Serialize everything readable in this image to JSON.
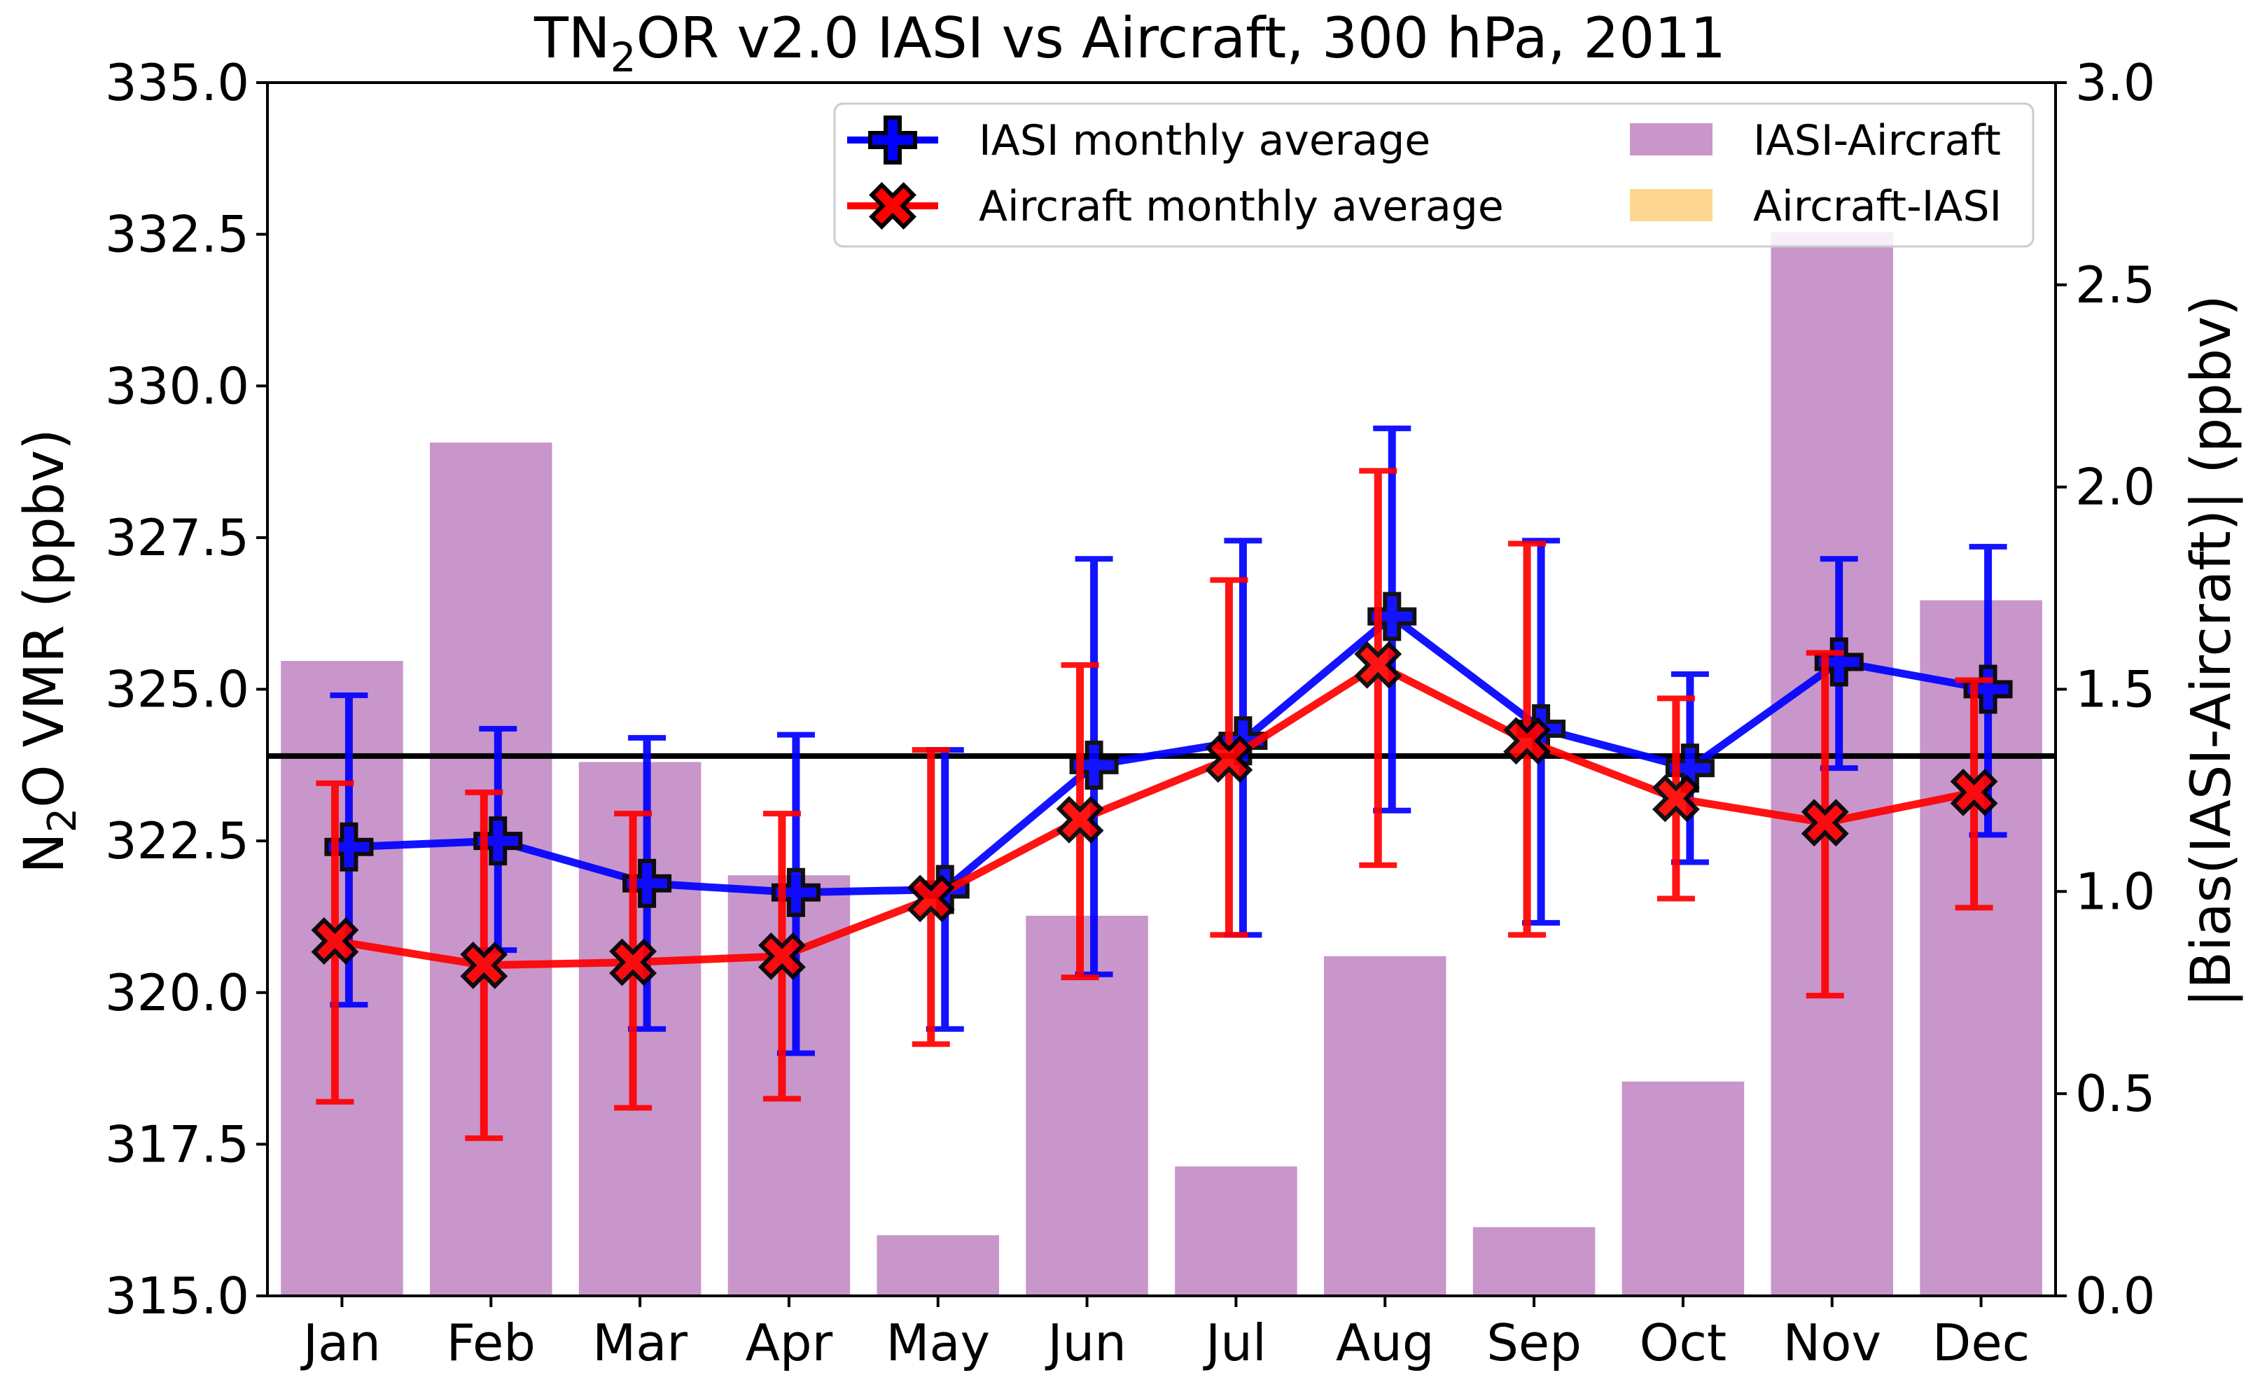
{
  "chart_data": {
    "type": "bar+line",
    "title": "TN2OR v2.0 IASI vs Aircraft, 300 hPa, 2011",
    "title_parts": [
      "TN",
      "2",
      "OR v2.0 IASI vs Aircraft, 300 hPa, 2011"
    ],
    "ylabel_left": "N2O VMR (ppbv)",
    "ylabel_left_parts": [
      "N",
      "2",
      "O VMR (ppbv)"
    ],
    "ylabel_right": "|Bias(IASI-Aircraft)| (ppbv)",
    "ylim_left": [
      315.0,
      335.0
    ],
    "ylim_right": [
      0.0,
      3.0
    ],
    "yticks_left": [
      "315.0",
      "317.5",
      "320.0",
      "322.5",
      "325.0",
      "327.5",
      "330.0",
      "332.5",
      "335.0"
    ],
    "yticks_right": [
      "0.0",
      "0.5",
      "1.0",
      "1.5",
      "2.0",
      "2.5",
      "3.0"
    ],
    "categories": [
      "Jan",
      "Feb",
      "Mar",
      "Apr",
      "May",
      "Jun",
      "Jul",
      "Aug",
      "Sep",
      "Oct",
      "Nov",
      "Dec"
    ],
    "reference_line": 323.9,
    "series": [
      {
        "name": "IASI monthly average",
        "color": "#0000ff",
        "marker": "plus",
        "values": [
          322.4,
          322.5,
          321.8,
          321.65,
          321.7,
          323.75,
          324.15,
          326.2,
          324.35,
          323.7,
          325.45,
          325.0
        ],
        "err_low": [
          319.8,
          320.7,
          319.4,
          319.0,
          319.4,
          320.3,
          320.95,
          323.0,
          321.15,
          322.15,
          323.7,
          322.6
        ],
        "err_high": [
          324.9,
          324.35,
          324.2,
          324.25,
          324.0,
          327.15,
          327.45,
          329.3,
          327.45,
          325.25,
          327.15,
          327.35
        ]
      },
      {
        "name": "Aircraft monthly average",
        "color": "#ff0000",
        "marker": "x",
        "values": [
          320.85,
          320.45,
          320.5,
          320.6,
          321.55,
          322.85,
          323.85,
          325.4,
          324.15,
          323.2,
          322.8,
          323.3
        ],
        "err_low": [
          318.2,
          317.6,
          318.1,
          318.25,
          319.15,
          320.25,
          320.95,
          322.1,
          320.95,
          321.55,
          319.95,
          321.4
        ],
        "err_high": [
          323.45,
          323.3,
          322.95,
          322.95,
          324.0,
          325.4,
          326.8,
          328.6,
          327.4,
          324.85,
          325.6,
          325.15
        ]
      }
    ],
    "bars": {
      "IASI-Aircraft": {
        "color": "#c896cb",
        "values": [
          1.57,
          2.11,
          1.32,
          1.04,
          0.15,
          0.94,
          0.32,
          0.84,
          0.17,
          0.53,
          2.63,
          1.72
        ]
      },
      "Aircraft-IASI": {
        "color": "#fdd78f",
        "values": [
          0,
          0,
          0,
          0,
          0,
          0,
          0,
          0,
          0,
          0,
          0,
          0
        ]
      }
    },
    "legend": {
      "position": "top-right",
      "entries": [
        "IASI monthly average",
        "Aircraft monthly average",
        "IASI-Aircraft",
        "Aircraft-IASI"
      ]
    }
  }
}
